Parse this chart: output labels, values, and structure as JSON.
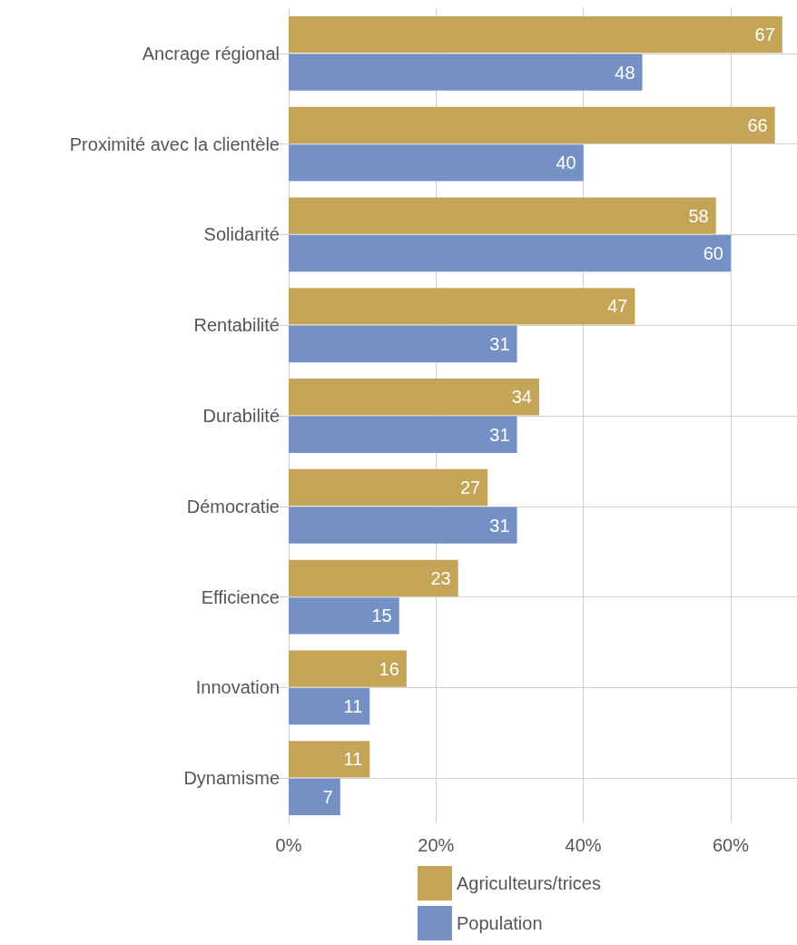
{
  "chart_data": {
    "type": "bar",
    "orientation": "horizontal",
    "categories": [
      "Ancrage régional",
      "Proximité avec la clientèle",
      "Solidarité",
      "Rentabilité",
      "Durabilité",
      "Démocratie",
      "Efficience",
      "Innovation",
      "Dynamisme"
    ],
    "series": [
      {
        "name": "Agriculteurs/trices",
        "color": "#c4a456",
        "values": [
          67,
          66,
          58,
          47,
          34,
          27,
          23,
          16,
          11
        ]
      },
      {
        "name": "Population",
        "color": "#7490c4",
        "values": [
          48,
          40,
          60,
          31,
          31,
          31,
          15,
          11,
          7
        ]
      }
    ],
    "xlim": [
      0,
      69
    ],
    "xticks": [
      {
        "value": 0,
        "label": "0%"
      },
      {
        "value": 20,
        "label": "20%"
      },
      {
        "value": 40,
        "label": "40%"
      },
      {
        "value": 60,
        "label": "60%"
      }
    ],
    "grid": true,
    "legend": "bottom",
    "data_labels": true
  }
}
